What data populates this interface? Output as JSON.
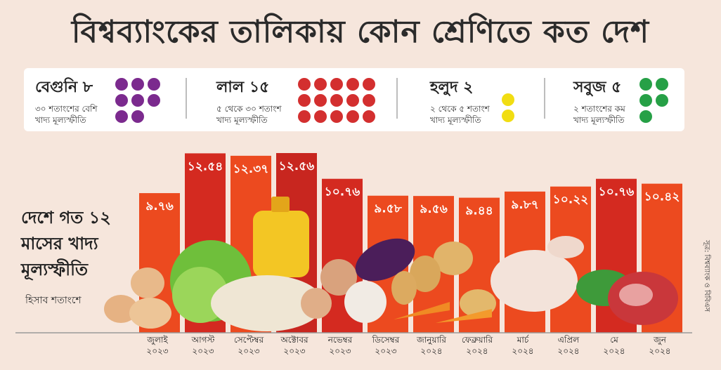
{
  "title": "বিশ্বব্যাংকের তালিকায় কোন শ্রেণিতে কত দেশ",
  "legend": [
    {
      "name": "বেগুনি ৮",
      "line1": "৩০ শতাংশের বেশি",
      "line2": "খাদ্য মূল্যস্ফীতি",
      "color": "#7b2a8e",
      "count": 8
    },
    {
      "name": "লাল ১৫",
      "line1": "৫ থেকে ৩০ শতাংশ",
      "line2": "খাদ্য মূল্যস্ফীতি",
      "color": "#d32f2f",
      "count": 15
    },
    {
      "name": "হলুদ ২",
      "line1": "২ থেকে ৫ শতাংশ",
      "line2": "খাদ্য মূল্যস্ফীতি",
      "color": "#f1dd12",
      "count": 2
    },
    {
      "name": "সবুজ ৫",
      "line1": "২ শতাংশের কম",
      "line2": "খাদ্য মূল্যস্ফীতি",
      "color": "#26a046",
      "count": 5
    }
  ],
  "side_title": {
    "line1": "দেশে গত ১২",
    "line2": "মাসের খাদ্য",
    "line3": "মূল্যস্ফীতি"
  },
  "unit_note": "হিসাব শতাংশে",
  "source": "সূত্র: বিশ্বব্যাংক ও বিবিএস",
  "chart_data": {
    "type": "bar",
    "categories": [
      "জুলাই ২০২৩",
      "আগস্ট ২০২৩",
      "সেপ্টেম্বর ২০২৩",
      "অক্টোবর ২০২৩",
      "নভেম্বর ২০২৩",
      "ডিসেম্বর ২০২৩",
      "জানুয়ারি ২০২৪",
      "ফেব্রুয়ারি ২০২৪",
      "মার্চ ২০২৪",
      "এপ্রিল ২০২৪",
      "মে ২০২৪",
      "জুন ২০২৪"
    ],
    "months": [
      "জুলাই",
      "আগস্ট",
      "সেপ্টেম্বর",
      "অক্টোবর",
      "নভেম্বর",
      "ডিসেম্বর",
      "জানুয়ারি",
      "ফেব্রুয়ারি",
      "মার্চ",
      "এপ্রিল",
      "মে",
      "জুন"
    ],
    "years": [
      "২০২৩",
      "২০২৩",
      "২০২৩",
      "২০২৩",
      "২০২৩",
      "২০২৩",
      "২০২৪",
      "২০২৪",
      "২০২৪",
      "২০২৪",
      "২০২৪",
      "২০২৪"
    ],
    "values": [
      9.76,
      12.54,
      12.37,
      12.56,
      10.76,
      9.58,
      9.56,
      9.44,
      9.87,
      10.22,
      10.76,
      10.42
    ],
    "value_labels": [
      "৯.৭৬",
      "১২.৫৪",
      "১২.৩৭",
      "১২.৫৬",
      "১০.৭৬",
      "৯.৫৮",
      "৯.৫৬",
      "৯.৪৪",
      "৯.৮৭",
      "১০.২২",
      "১০.৭৬",
      "১০.৪২"
    ],
    "colors": [
      "#ec4a1f",
      "#d42a20",
      "#ec4a1f",
      "#c8261f",
      "#d42a20",
      "#ec4a1f",
      "#ec4a1f",
      "#ec4a1f",
      "#ec4a1f",
      "#ec4a1f",
      "#d42a20",
      "#ec4a1f"
    ],
    "ylim": [
      0,
      13
    ]
  }
}
